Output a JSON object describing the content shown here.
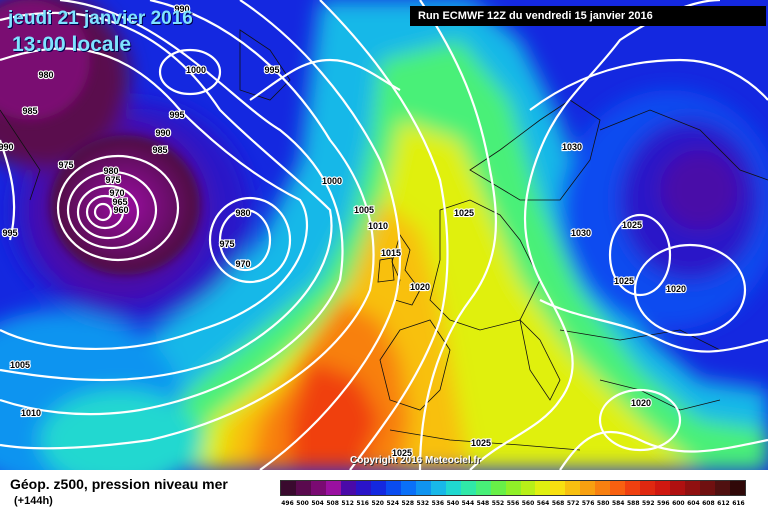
{
  "header": {
    "date_title": "jeudi 21 janvier 2016",
    "time_title": "13:00 locale",
    "run_info": "Run ECMWF 12Z du vendredi 15 janvier 2016",
    "copyright": "Copyright 2016 Meteociel.fr"
  },
  "legend": {
    "title": "Géop. z500, pression niveau mer",
    "subtitle": "(+144h)",
    "scale_labels": [
      "496",
      "500",
      "504",
      "508",
      "512",
      "516",
      "520",
      "524",
      "528",
      "532",
      "536",
      "540",
      "544",
      "548",
      "552",
      "556",
      "560",
      "564",
      "568",
      "572",
      "576",
      "580",
      "584",
      "588",
      "592",
      "596",
      "600",
      "604",
      "608",
      "612",
      "616"
    ],
    "scale_colors": [
      "#3a0a2e",
      "#5a0a4e",
      "#7a0a72",
      "#9a10a0",
      "#4a0aa8",
      "#2a14c8",
      "#1428e0",
      "#0a4cf0",
      "#0a70f8",
      "#1094f0",
      "#18b8e8",
      "#20d8d0",
      "#30e8a8",
      "#48f078",
      "#68f048",
      "#90f028",
      "#b8f018",
      "#e0f010",
      "#f8e010",
      "#f8c010",
      "#f8a010",
      "#f88010",
      "#f86010",
      "#f04010",
      "#e02810",
      "#d01810",
      "#b01010",
      "#901010",
      "#701010",
      "#501010",
      "#300808"
    ]
  },
  "map": {
    "isobar_labels": [
      {
        "text": "990",
        "id": "isobar-label-990-top"
      },
      {
        "text": "980",
        "id": "isobar-label-980-left"
      },
      {
        "text": "1000",
        "id": "isobar-label-1000-north"
      },
      {
        "text": "995",
        "id": "isobar-label-995-north"
      },
      {
        "text": "985",
        "id": "isobar-label-985-west"
      },
      {
        "text": "995",
        "id": "isobar-label-995-mid"
      },
      {
        "text": "990",
        "id": "isobar-label-990-mid"
      },
      {
        "text": "985",
        "id": "isobar-label-985-mid"
      },
      {
        "text": "975",
        "id": "isobar-label-975-west"
      },
      {
        "text": "980",
        "id": "isobar-label-980-center"
      },
      {
        "text": "975",
        "id": "isobar-label-975-center"
      },
      {
        "text": "970",
        "id": "isobar-label-970-center"
      },
      {
        "text": "965",
        "id": "isobar-label-965-center"
      },
      {
        "text": "960",
        "id": "isobar-label-960-center"
      },
      {
        "text": "980",
        "id": "isobar-label-980-east"
      },
      {
        "text": "975",
        "id": "isobar-label-975-east"
      },
      {
        "text": "970",
        "id": "isobar-label-970-east"
      },
      {
        "text": "995",
        "id": "isobar-label-995-west-edge"
      },
      {
        "text": "1000",
        "id": "isobar-label-1000-atlantic"
      },
      {
        "text": "1005",
        "id": "isobar-label-1005-atlantic"
      },
      {
        "text": "1010",
        "id": "isobar-label-1010-atlantic"
      },
      {
        "text": "1015",
        "id": "isobar-label-1015"
      },
      {
        "text": "1020",
        "id": "isobar-label-1020-france"
      },
      {
        "text": "1025",
        "id": "isobar-label-1025-north-sea"
      },
      {
        "text": "1030",
        "id": "isobar-label-1030-scandinavia"
      },
      {
        "text": "1030",
        "id": "isobar-label-1030-baltic"
      },
      {
        "text": "1025",
        "id": "isobar-label-1025-russia"
      },
      {
        "text": "1025",
        "id": "isobar-label-1025-east"
      },
      {
        "text": "1020",
        "id": "isobar-label-1020-east"
      },
      {
        "text": "1005",
        "id": "isobar-label-1005-sw"
      },
      {
        "text": "1010",
        "id": "isobar-label-1010-sw"
      },
      {
        "text": "1020",
        "id": "isobar-label-1020-balkans"
      },
      {
        "text": "1025",
        "id": "isobar-label-1025-africa"
      },
      {
        "text": "1025",
        "id": "isobar-label-1025-med"
      },
      {
        "text": "990",
        "id": "isobar-label-990-west-edge"
      }
    ]
  }
}
